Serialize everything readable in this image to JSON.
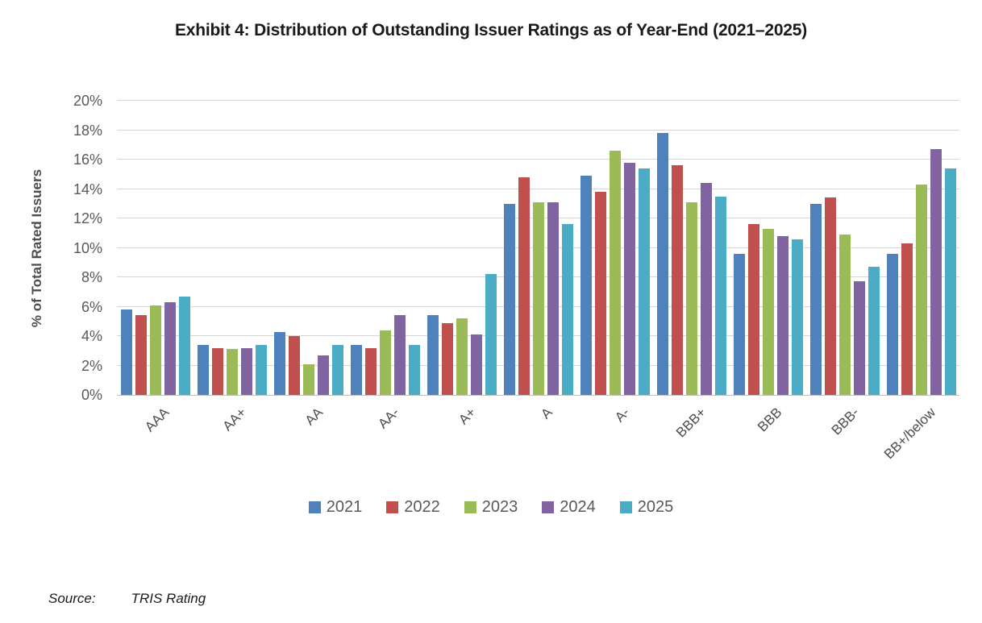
{
  "title": "Exhibit 4: Distribution of Outstanding Issuer Ratings as of Year-End (2021–2025)",
  "source": {
    "label": "Source:",
    "value": "TRIS Rating"
  },
  "colors": {
    "gridline": "#d6d6d6",
    "axis_line": "#bfbfbf",
    "tick_text": "#595959",
    "series_2021": "#4F81BD",
    "series_2022": "#C0504D",
    "series_2023": "#9BBB59",
    "series_2024": "#8064A2",
    "series_2025": "#4BACC6"
  },
  "chart_data": {
    "type": "bar",
    "title": "Exhibit 4: Distribution of Outstanding Issuer Ratings as of Year-End (2021–2025)",
    "xlabel": "",
    "ylabel": "% of Total Rated Issuers",
    "ylim": [
      0,
      20
    ],
    "ytick_step": 2,
    "ytick_suffix": "%",
    "grid": true,
    "legend_position": "bottom",
    "categories": [
      "AAA",
      "AA+",
      "AA",
      "AA-",
      "A+",
      "A",
      "A-",
      "BBB+",
      "BBB",
      "BBB-",
      "BB+/below"
    ],
    "series": [
      {
        "name": "2021",
        "color": "#4F81BD",
        "values": [
          5.8,
          3.4,
          4.3,
          3.4,
          5.4,
          13.0,
          14.9,
          17.8,
          9.6,
          13.0,
          9.6
        ]
      },
      {
        "name": "2022",
        "color": "#C0504D",
        "values": [
          5.4,
          3.2,
          4.0,
          3.2,
          4.9,
          14.8,
          13.8,
          15.6,
          11.6,
          13.4,
          10.3
        ]
      },
      {
        "name": "2023",
        "color": "#9BBB59",
        "values": [
          6.1,
          3.1,
          2.1,
          4.4,
          5.2,
          13.1,
          16.6,
          13.1,
          11.3,
          10.9,
          14.3
        ]
      },
      {
        "name": "2024",
        "color": "#8064A2",
        "values": [
          6.3,
          3.2,
          2.7,
          5.4,
          4.1,
          13.1,
          15.8,
          14.4,
          10.8,
          7.7,
          16.7
        ]
      },
      {
        "name": "2025",
        "color": "#4BACC6",
        "values": [
          6.7,
          3.4,
          3.4,
          3.4,
          8.2,
          11.6,
          15.4,
          13.5,
          10.6,
          8.7,
          15.4
        ]
      }
    ]
  }
}
